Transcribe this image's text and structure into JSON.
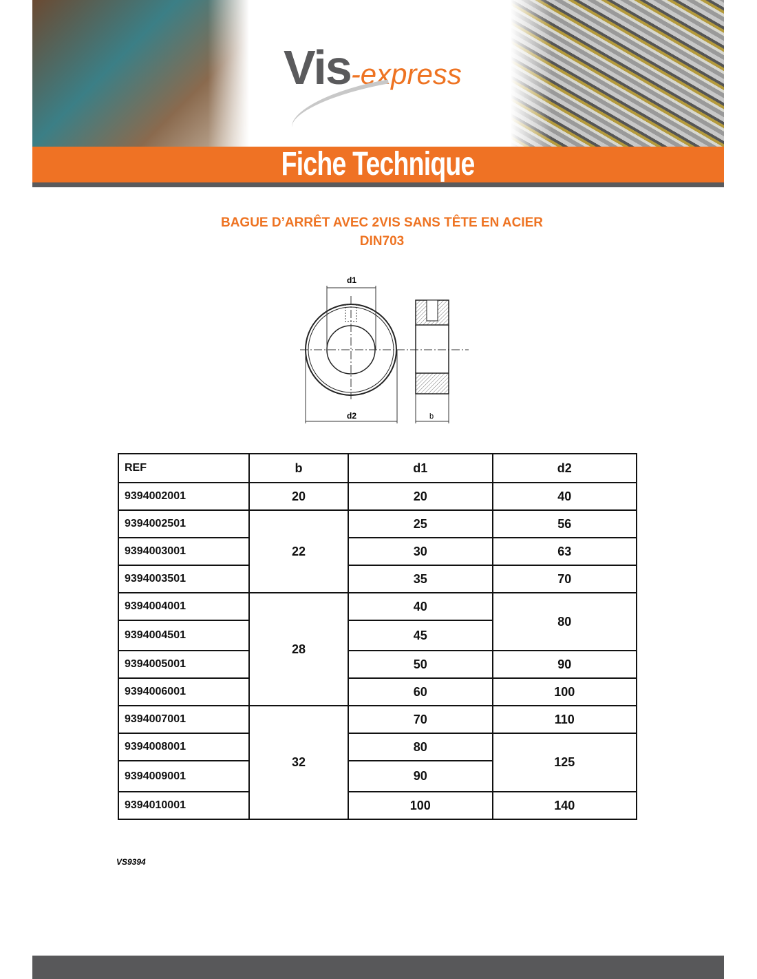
{
  "header": {
    "logo_main": "Vis",
    "logo_sub": "-express",
    "banner": "Fiche Technique"
  },
  "title": {
    "line1": "BAGUE D’ARRÊT AVEC 2VIS SANS TÊTE EN ACIER",
    "line2": "DIN703"
  },
  "drawing": {
    "d1": "d1",
    "d2": "d2",
    "b": "b"
  },
  "table": {
    "headers": [
      "REF",
      "b",
      "d1",
      "d2"
    ],
    "rows": [
      {
        "ref": "9394002001",
        "b": "20",
        "d1": "20",
        "d2": "40"
      },
      {
        "ref": "9394002501",
        "b": "22",
        "d1": "25",
        "d2": "56"
      },
      {
        "ref": "9394003001",
        "d1": "30",
        "d2": "63"
      },
      {
        "ref": "9394003501",
        "d1": "35",
        "d2": "70"
      },
      {
        "ref": "9394004001",
        "b": "28",
        "d1": "40",
        "d2": "80"
      },
      {
        "ref": "9394004501",
        "d1": "45"
      },
      {
        "ref": "9394005001",
        "d1": "50",
        "d2": "90"
      },
      {
        "ref": "9394006001",
        "d1": "60",
        "d2": "100"
      },
      {
        "ref": "9394007001",
        "b": "32",
        "d1": "70",
        "d2": "110"
      },
      {
        "ref": "9394008001",
        "d1": "80",
        "d2": "125"
      },
      {
        "ref": "9394009001",
        "d1": "90"
      },
      {
        "ref": "9394010001",
        "d1": "100",
        "d2": "140"
      }
    ]
  },
  "footer_code": "VS9394",
  "colors": {
    "accent": "#ef7224",
    "grey": "#58585a"
  }
}
